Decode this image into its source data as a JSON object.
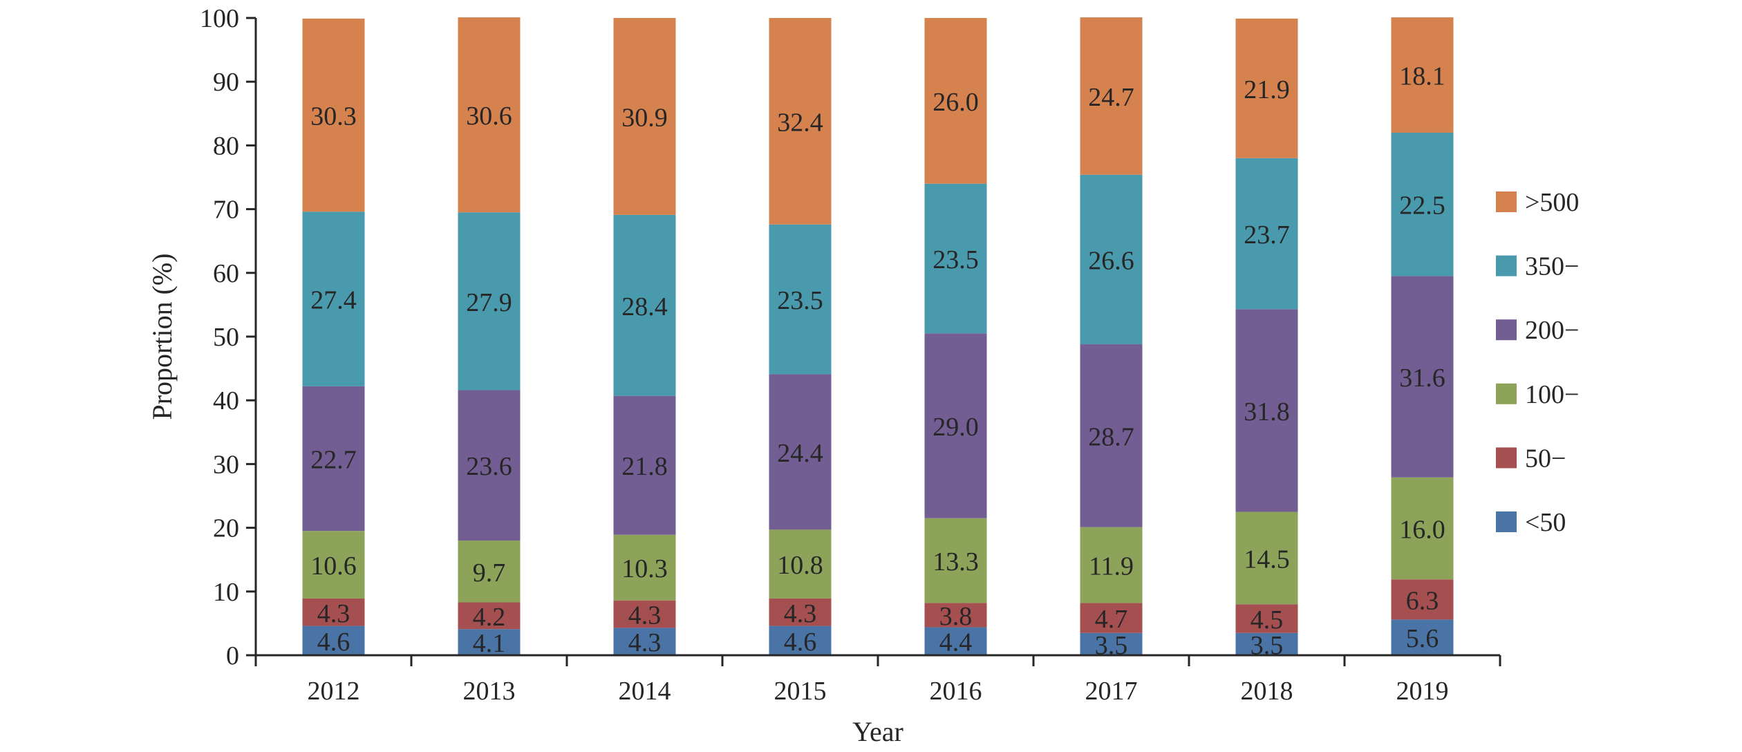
{
  "chart_data": {
    "type": "bar",
    "stacked": true,
    "title": "",
    "xlabel": "Year",
    "ylabel": "Proportion (%)",
    "ylim": [
      0,
      100
    ],
    "yticks": [
      0,
      10,
      20,
      30,
      40,
      50,
      60,
      70,
      80,
      90,
      100
    ],
    "grid": false,
    "legend_position": "right",
    "categories": [
      "2012",
      "2013",
      "2014",
      "2015",
      "2016",
      "2017",
      "2018",
      "2019"
    ],
    "series": [
      {
        "name": "<50",
        "color": "#4a73a6",
        "values": [
          4.6,
          4.1,
          4.3,
          4.6,
          4.4,
          3.5,
          3.5,
          5.6
        ]
      },
      {
        "name": "50−",
        "color": "#a54f50",
        "values": [
          4.3,
          4.2,
          4.3,
          4.3,
          3.8,
          4.7,
          4.5,
          6.3
        ]
      },
      {
        "name": "100−",
        "color": "#8ea35a",
        "values": [
          10.6,
          9.7,
          10.3,
          10.8,
          13.3,
          11.9,
          14.5,
          16.0
        ]
      },
      {
        "name": "200−",
        "color": "#725e92",
        "values": [
          22.7,
          23.6,
          21.8,
          24.4,
          29.0,
          28.7,
          31.8,
          31.6
        ]
      },
      {
        "name": "350−",
        "color": "#4a9aae",
        "values": [
          27.4,
          27.9,
          28.4,
          23.5,
          23.5,
          26.6,
          23.7,
          22.5
        ]
      },
      {
        "name": ">500",
        "color": "#d5824f",
        "values": [
          30.3,
          30.6,
          30.9,
          32.4,
          26.0,
          24.7,
          21.9,
          18.1
        ]
      }
    ]
  }
}
